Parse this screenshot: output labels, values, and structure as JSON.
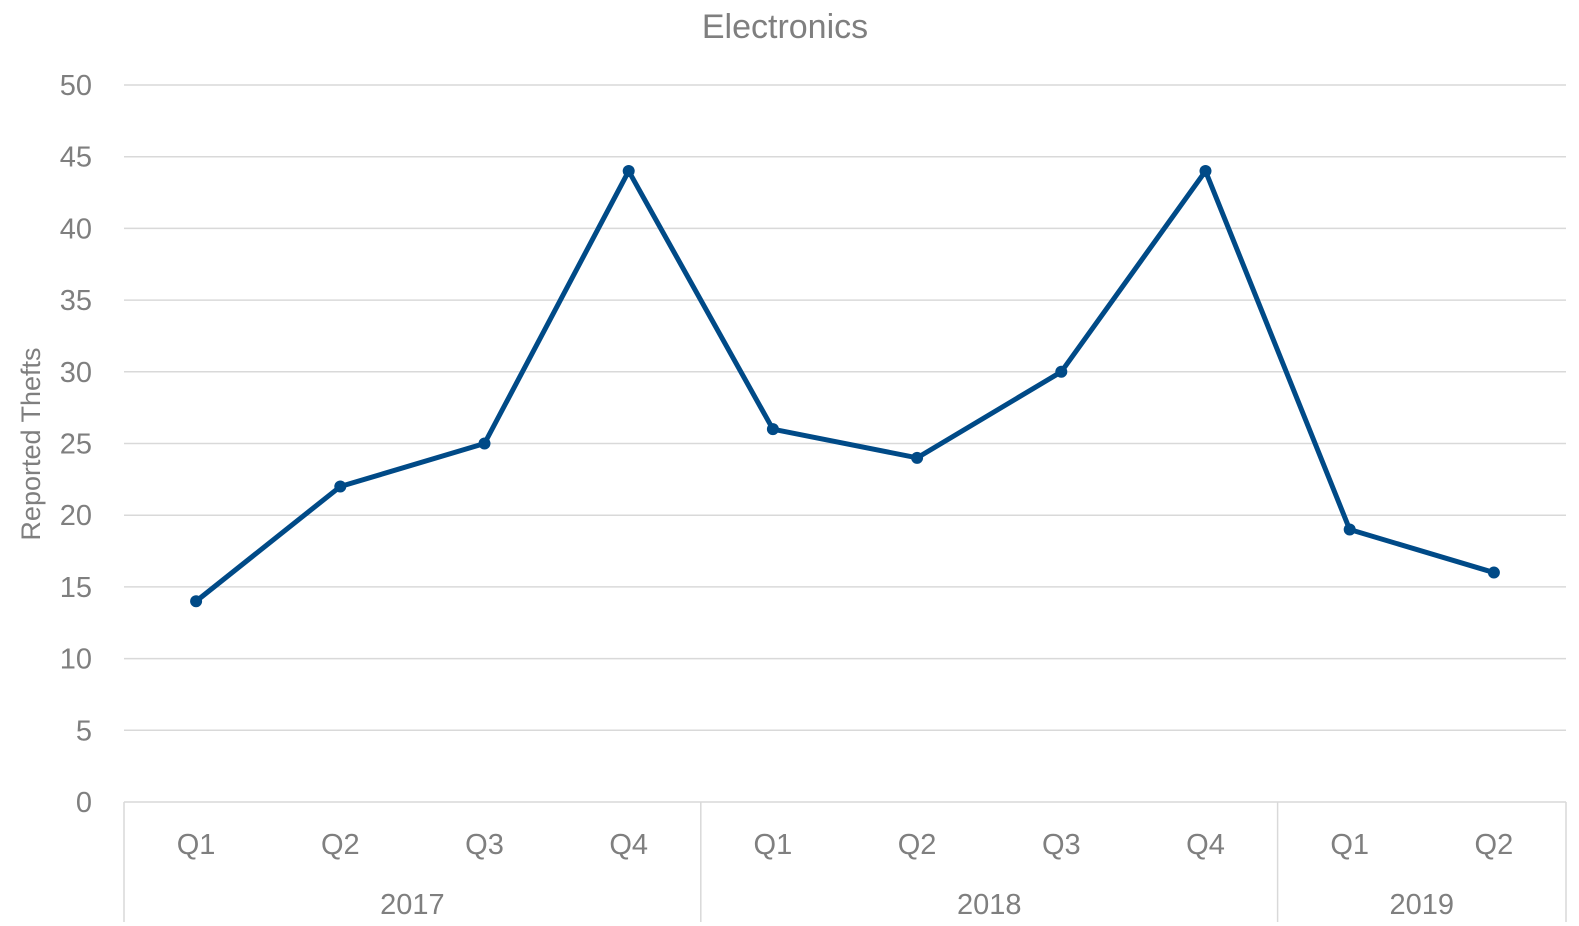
{
  "chart_data": {
    "type": "line",
    "title": "Electronics",
    "xlabel": "",
    "ylabel": "Reported Thefts",
    "ylim": [
      0,
      50
    ],
    "y_ticks": [
      "0",
      "5",
      "10",
      "15",
      "20",
      "25",
      "30",
      "35",
      "40",
      "45",
      "50"
    ],
    "grid": true,
    "legend": "none",
    "categories": [
      "Q1",
      "Q2",
      "Q3",
      "Q4",
      "Q1",
      "Q2",
      "Q3",
      "Q4",
      "Q1",
      "Q2"
    ],
    "groups": [
      {
        "label": "2017",
        "count": 4
      },
      {
        "label": "2018",
        "count": 4
      },
      {
        "label": "2019",
        "count": 2
      }
    ],
    "series": [
      {
        "values": [
          14,
          22,
          25,
          44,
          26,
          24,
          30,
          44,
          19,
          16
        ],
        "color": "#004a87"
      }
    ]
  }
}
